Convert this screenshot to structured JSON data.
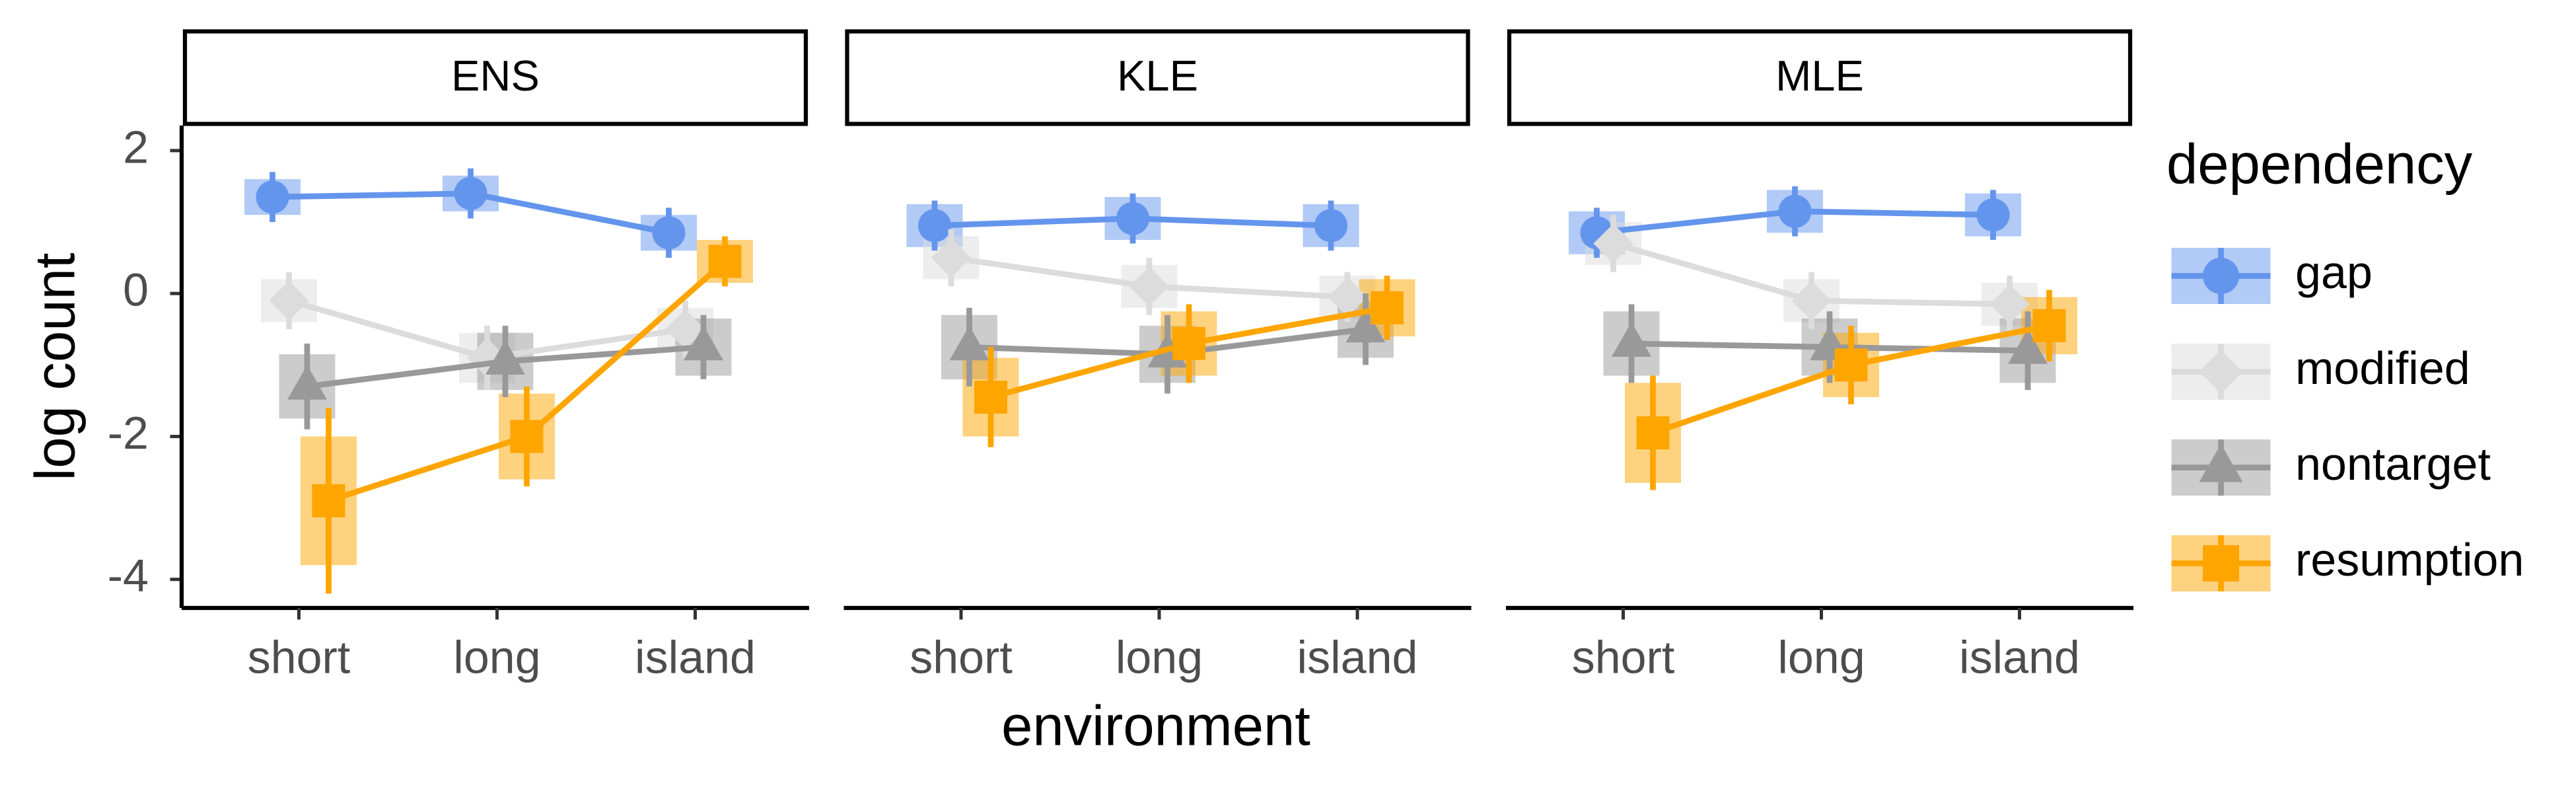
{
  "chart_data": {
    "type": "line",
    "xlabel": "environment",
    "ylabel": "log count",
    "legend_title": "dependency",
    "legend": "right",
    "grid": false,
    "categories": [
      "short",
      "long",
      "island"
    ],
    "ylim": [
      -4.4,
      2.35
    ],
    "yticks": [
      2,
      0,
      -2,
      -4
    ],
    "series": [
      {
        "name": "gap",
        "color": "#6495ed",
        "shape": "circle"
      },
      {
        "name": "modified",
        "color": "#dcdcdc",
        "shape": "diamond"
      },
      {
        "name": "nontarget",
        "color": "#999999",
        "shape": "triangle"
      },
      {
        "name": "resumption",
        "color": "#ffa500",
        "shape": "square"
      }
    ],
    "panels": [
      {
        "title": "ENS",
        "series": [
          {
            "values": [
              1.35,
              1.4,
              0.85
            ],
            "errors": [
              0.35,
              0.35,
              0.35
            ],
            "boxes": [
              0.25,
              0.25,
              0.25
            ]
          },
          {
            "values": [
              -0.1,
              -0.9,
              -0.5
            ],
            "errors": [
              0.4,
              0.45,
              0.4
            ],
            "boxes": [
              0.3,
              0.35,
              0.3
            ]
          },
          {
            "values": [
              -1.3,
              -0.95,
              -0.75
            ],
            "errors": [
              0.6,
              0.5,
              0.45
            ],
            "boxes": [
              0.45,
              0.4,
              0.4
            ]
          },
          {
            "values": [
              -2.9,
              -2.0,
              0.45
            ],
            "errors": [
              1.3,
              0.7,
              0.35
            ],
            "boxes": [
              0.9,
              0.6,
              0.3
            ]
          }
        ]
      },
      {
        "title": "KLE",
        "series": [
          {
            "values": [
              0.95,
              1.05,
              0.95
            ],
            "errors": [
              0.35,
              0.35,
              0.35
            ],
            "boxes": [
              0.3,
              0.3,
              0.3
            ]
          },
          {
            "values": [
              0.5,
              0.1,
              -0.05
            ],
            "errors": [
              0.4,
              0.4,
              0.35
            ],
            "boxes": [
              0.3,
              0.3,
              0.3
            ]
          },
          {
            "values": [
              -0.75,
              -0.85,
              -0.5
            ],
            "errors": [
              0.55,
              0.55,
              0.5
            ],
            "boxes": [
              0.45,
              0.4,
              0.4
            ]
          },
          {
            "values": [
              -1.45,
              -0.7,
              -0.2
            ],
            "errors": [
              0.7,
              0.55,
              0.45
            ],
            "boxes": [
              0.55,
              0.45,
              0.4
            ]
          }
        ]
      },
      {
        "title": "MLE",
        "series": [
          {
            "values": [
              0.85,
              1.15,
              1.1
            ],
            "errors": [
              0.35,
              0.35,
              0.35
            ],
            "boxes": [
              0.3,
              0.3,
              0.3
            ]
          },
          {
            "values": [
              0.7,
              -0.1,
              -0.15
            ],
            "errors": [
              0.4,
              0.4,
              0.4
            ],
            "boxes": [
              0.3,
              0.3,
              0.3
            ]
          },
          {
            "values": [
              -0.7,
              -0.75,
              -0.8
            ],
            "errors": [
              0.55,
              0.5,
              0.55
            ],
            "boxes": [
              0.45,
              0.4,
              0.45
            ]
          },
          {
            "values": [
              -1.95,
              -1.0,
              -0.45
            ],
            "errors": [
              0.8,
              0.55,
              0.5
            ],
            "boxes": [
              0.7,
              0.45,
              0.4
            ]
          }
        ]
      }
    ]
  }
}
